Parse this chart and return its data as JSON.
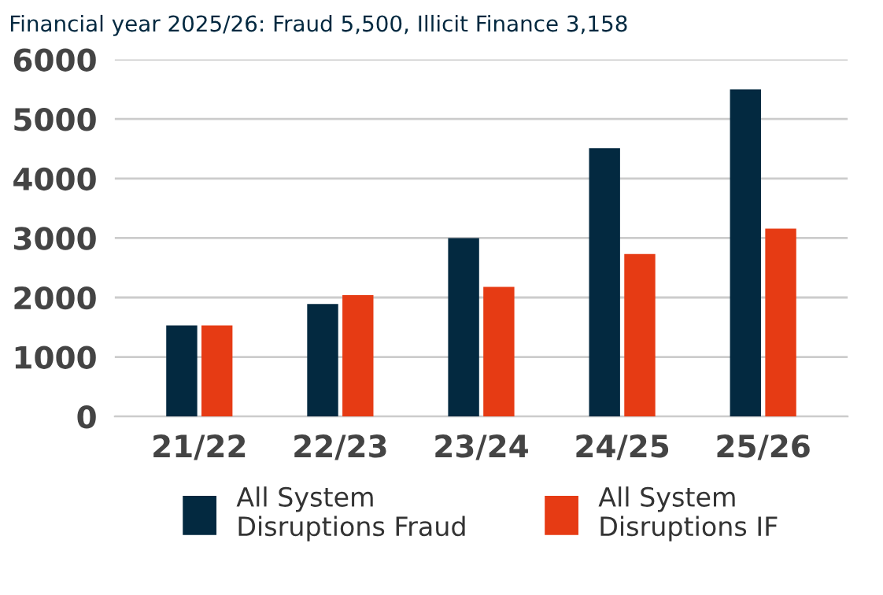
{
  "chart_data": {
    "type": "bar",
    "title": "Financial year 2025/26: Fraud 5,500, Illicit Finance 3,158",
    "categories": [
      "21/22",
      "22/23",
      "23/24",
      "24/25",
      "25/26"
    ],
    "series": [
      {
        "name": "All System Disruptions Fraud",
        "color": "#032940",
        "values": [
          1530,
          1890,
          3000,
          4510,
          5500
        ]
      },
      {
        "name": "All System Disruptions IF",
        "color": "#e63b14",
        "values": [
          1530,
          2040,
          2180,
          2730,
          3158
        ]
      }
    ],
    "ylim": [
      0,
      6000
    ],
    "yticks": [
      0,
      1000,
      2000,
      3000,
      4000,
      5000,
      6000
    ],
    "grid": "y",
    "legend": "bottom"
  }
}
